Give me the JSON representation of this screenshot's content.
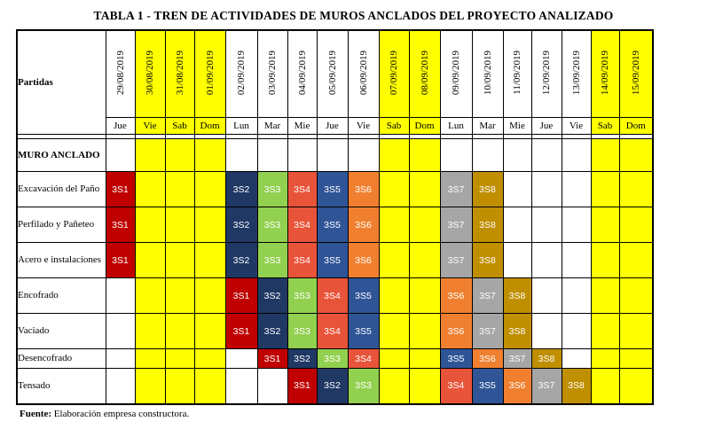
{
  "title": "TABLA 1 - TREN DE ACTIVIDADES DE MUROS ANCLADOS DEL PROYECTO ANALIZADO",
  "header_label": "Partidas",
  "dates": [
    "29/08/2019",
    "30/08/2019",
    "31/08/2019",
    "01/09/2019",
    "02/09/2019",
    "03/09/2019",
    "04/09/2019",
    "05/09/2019",
    "06/09/2019",
    "07/09/2019",
    "08/09/2019",
    "09/09/2019",
    "10/09/2019",
    "11/09/2019",
    "12/09/2019",
    "13/09/2019",
    "14/09/2019",
    "15/09/2019"
  ],
  "days": [
    "Jue",
    "Vie",
    "Sab",
    "Dom",
    "Lun",
    "Mar",
    "Mie",
    "Jue",
    "Vie",
    "Sab",
    "Dom",
    "Lun",
    "Mar",
    "Mie",
    "Jue",
    "Vie",
    "Sab",
    "Dom"
  ],
  "weekend_columns": [
    1,
    2,
    3,
    9,
    10,
    16,
    17
  ],
  "colors": {
    "S1": "#c00000",
    "S2": "#1f3864",
    "S3": "#92d050",
    "S4": "#e8543a",
    "S5": "#2f5597",
    "S6": "#f08030",
    "S7": "#a6a6a6",
    "S8": "#bf8f00",
    "weekend": "#ffff00"
  },
  "rows": [
    {
      "name": "MURO ANCLADO",
      "section": true,
      "cells": {}
    },
    {
      "name": "Excavación del Paño",
      "cells": {
        "0": "3S1",
        "4": "3S2",
        "5": "3S3",
        "6": "3S4",
        "7": "3S5",
        "8": "3S6",
        "11": "3S7",
        "12": "3S8"
      }
    },
    {
      "name": "Perfilado y Pañeteo",
      "cells": {
        "0": "3S1",
        "4": "3S2",
        "5": "3S3",
        "6": "3S4",
        "7": "3S5",
        "8": "3S6",
        "11": "3S7",
        "12": "3S8"
      }
    },
    {
      "name": "Acero e instalaciones",
      "cells": {
        "0": "3S1",
        "4": "3S2",
        "5": "3S3",
        "6": "3S4",
        "7": "3S5",
        "8": "3S6",
        "11": "3S7",
        "12": "3S8"
      }
    },
    {
      "name": "Encofrado",
      "cells": {
        "4": "3S1",
        "5": "3S2",
        "6": "3S3",
        "7": "3S4",
        "8": "3S5",
        "11": "3S6",
        "12": "3S7",
        "13": "3S8"
      }
    },
    {
      "name": "Vaciado",
      "cells": {
        "4": "3S1",
        "5": "3S2",
        "6": "3S3",
        "7": "3S4",
        "8": "3S5",
        "11": "3S6",
        "12": "3S7",
        "13": "3S8"
      }
    },
    {
      "name": "Desencofrado",
      "cells": {
        "5": "3S1",
        "6": "3S2",
        "7": "3S3",
        "8": "3S4",
        "11": "3S5",
        "12": "3S6",
        "13": "3S7",
        "14": "3S8"
      }
    },
    {
      "name": "Tensado",
      "cells": {
        "6": "3S1",
        "7": "3S2",
        "8": "3S3",
        "11": "3S4",
        "12": "3S5",
        "13": "3S6",
        "14": "3S7",
        "15": "3S8"
      }
    }
  ],
  "footer": {
    "label": "Fuente:",
    "text": " Elaboración empresa constructora."
  }
}
